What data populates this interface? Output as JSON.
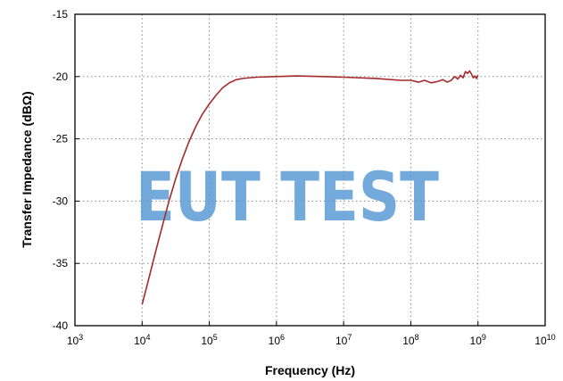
{
  "chart_data": {
    "type": "line",
    "title": "",
    "xlabel": "Frequency (Hz)",
    "ylabel": "Transfer Impedance (dBΩ)",
    "xscale": "log",
    "xlim": [
      1000,
      10000000000
    ],
    "ylim": [
      -40,
      -15
    ],
    "x_ticks": [
      {
        "value": 1000,
        "base": "10",
        "exp": "3"
      },
      {
        "value": 10000,
        "base": "10",
        "exp": "4"
      },
      {
        "value": 100000,
        "base": "10",
        "exp": "5"
      },
      {
        "value": 1000000,
        "base": "10",
        "exp": "6"
      },
      {
        "value": 10000000,
        "base": "10",
        "exp": "7"
      },
      {
        "value": 100000000,
        "base": "10",
        "exp": "8"
      },
      {
        "value": 1000000000,
        "base": "10",
        "exp": "9"
      },
      {
        "value": 10000000000,
        "base": "10",
        "exp": "10"
      }
    ],
    "y_ticks": [
      -15,
      -20,
      -25,
      -30,
      -35,
      -40
    ],
    "grid": true,
    "line_color": "#a52a2a",
    "series": [
      {
        "x": [
          10000,
          12600,
          15800,
          20000,
          25100,
          31600,
          39800,
          50100,
          63100,
          79400,
          100000,
          126000,
          158000,
          200000,
          251000,
          316000,
          500000,
          1000000,
          2000000,
          5000000,
          10000000,
          30000000,
          70000000,
          100000000,
          130000000,
          160000000,
          200000000,
          250000000,
          300000000,
          350000000,
          400000000,
          450000000,
          500000000,
          550000000,
          600000000,
          650000000,
          700000000,
          750000000,
          800000000,
          850000000,
          900000000,
          950000000,
          1000000000
        ],
        "y": [
          -38.3,
          -36.2,
          -34.1,
          -32.0,
          -30.0,
          -28.2,
          -26.6,
          -25.2,
          -24.0,
          -23.0,
          -22.2,
          -21.5,
          -20.9,
          -20.5,
          -20.25,
          -20.15,
          -20.05,
          -20.0,
          -19.95,
          -20.0,
          -20.05,
          -20.15,
          -20.3,
          -20.3,
          -20.45,
          -20.3,
          -20.5,
          -20.4,
          -20.25,
          -20.45,
          -20.3,
          -20.0,
          -20.2,
          -19.9,
          -20.1,
          -19.6,
          -19.75,
          -19.55,
          -19.8,
          -20.1,
          -19.95,
          -20.15,
          -19.9
        ]
      }
    ]
  },
  "watermark": {
    "text": "EUT TEST",
    "color": "#5b9bd5"
  }
}
